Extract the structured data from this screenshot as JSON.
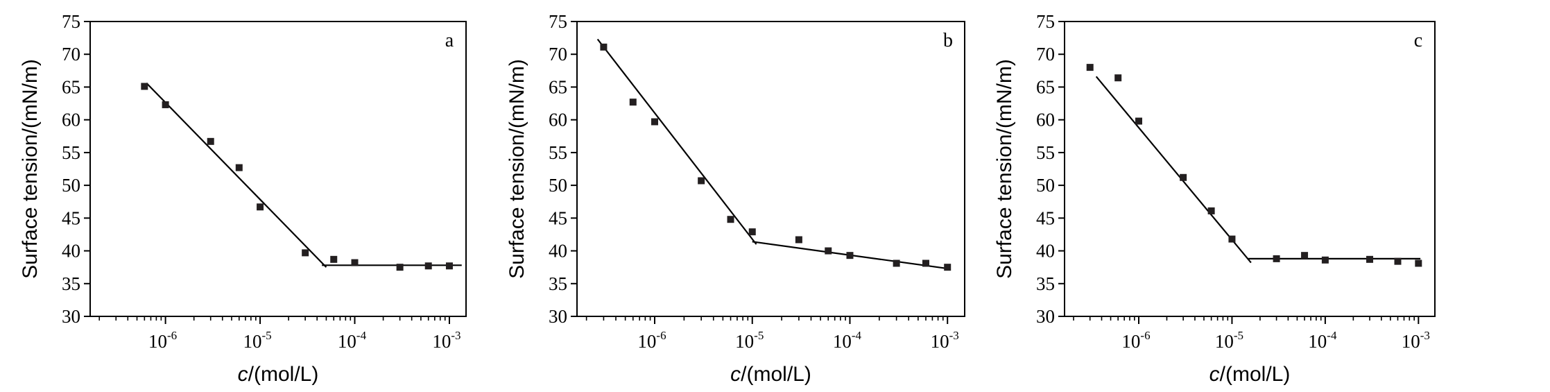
{
  "chart_data": [
    {
      "type": "scatter",
      "panel_label": "a",
      "xscale": "log",
      "xlim": [
        1.6e-07,
        0.0015
      ],
      "ylim": [
        30,
        75
      ],
      "xticks": [
        "1e-6",
        "1e-5",
        "1e-4",
        "1e-3"
      ],
      "yticks": [
        30,
        35,
        40,
        45,
        50,
        55,
        60,
        65,
        70,
        75
      ],
      "xlabel": "c/(mol/L)",
      "ylabel": "Surface tension/(mN/m)",
      "points": [
        [
          6e-07,
          65.1
        ],
        [
          1e-06,
          62.3
        ],
        [
          3e-06,
          56.7
        ],
        [
          6e-06,
          52.7
        ],
        [
          1e-05,
          46.7
        ],
        [
          3e-05,
          39.7
        ],
        [
          6e-05,
          38.7
        ],
        [
          0.0001,
          38.2
        ],
        [
          0.0003,
          37.5
        ],
        [
          0.0006,
          37.7
        ],
        [
          0.001,
          37.7
        ]
      ],
      "fit_lines": [
        [
          [
            6.3e-07,
            65.6
          ],
          [
            5e-05,
            37.5
          ]
        ],
        [
          [
            4.5e-05,
            37.8
          ],
          [
            0.00135,
            37.8
          ]
        ]
      ]
    },
    {
      "type": "scatter",
      "panel_label": "b",
      "xscale": "log",
      "xlim": [
        1.6e-07,
        0.0015
      ],
      "ylim": [
        30,
        75
      ],
      "xticks": [
        "1e-6",
        "1e-5",
        "1e-4",
        "1e-3"
      ],
      "yticks": [
        30,
        35,
        40,
        45,
        50,
        55,
        60,
        65,
        70,
        75
      ],
      "xlabel": "c/(mol/L)",
      "ylabel": "Surface tension/(mN/m)",
      "points": [
        [
          3e-07,
          71.1
        ],
        [
          6e-07,
          62.7
        ],
        [
          1e-06,
          59.7
        ],
        [
          3e-06,
          50.7
        ],
        [
          6e-06,
          44.8
        ],
        [
          1e-05,
          42.9
        ],
        [
          3e-05,
          41.7
        ],
        [
          6e-05,
          40.0
        ],
        [
          0.0001,
          39.3
        ],
        [
          0.0003,
          38.1
        ],
        [
          0.0006,
          38.1
        ],
        [
          0.001,
          37.5
        ]
      ],
      "fit_lines": [
        [
          [
            2.6e-07,
            72.3
          ],
          [
            1.1e-05,
            41.0
          ]
        ],
        [
          [
            1e-05,
            41.4
          ],
          [
            0.001,
            37.3
          ]
        ]
      ]
    },
    {
      "type": "scatter",
      "panel_label": "c",
      "xscale": "log",
      "xlim": [
        1.6e-07,
        0.0015
      ],
      "ylim": [
        30,
        75
      ],
      "xticks": [
        "1e-6",
        "1e-5",
        "1e-4",
        "1e-3"
      ],
      "yticks": [
        30,
        35,
        40,
        45,
        50,
        55,
        60,
        65,
        70,
        75
      ],
      "xlabel": "c/(mol/L)",
      "ylabel": "Surface tension/(mN/m)",
      "points": [
        [
          3e-07,
          68.0
        ],
        [
          6e-07,
          66.4
        ],
        [
          1e-06,
          59.8
        ],
        [
          3e-06,
          51.2
        ],
        [
          6e-06,
          46.1
        ],
        [
          1e-05,
          41.8
        ],
        [
          3e-05,
          38.8
        ],
        [
          6e-05,
          39.3
        ],
        [
          0.0001,
          38.6
        ],
        [
          0.0003,
          38.7
        ],
        [
          0.0006,
          38.4
        ],
        [
          0.001,
          38.1
        ]
      ],
      "fit_lines": [
        [
          [
            3.5e-07,
            66.6
          ],
          [
            1.6e-05,
            38.2
          ]
        ],
        [
          [
            1.5e-05,
            38.8
          ],
          [
            0.00105,
            38.8
          ]
        ]
      ]
    }
  ]
}
